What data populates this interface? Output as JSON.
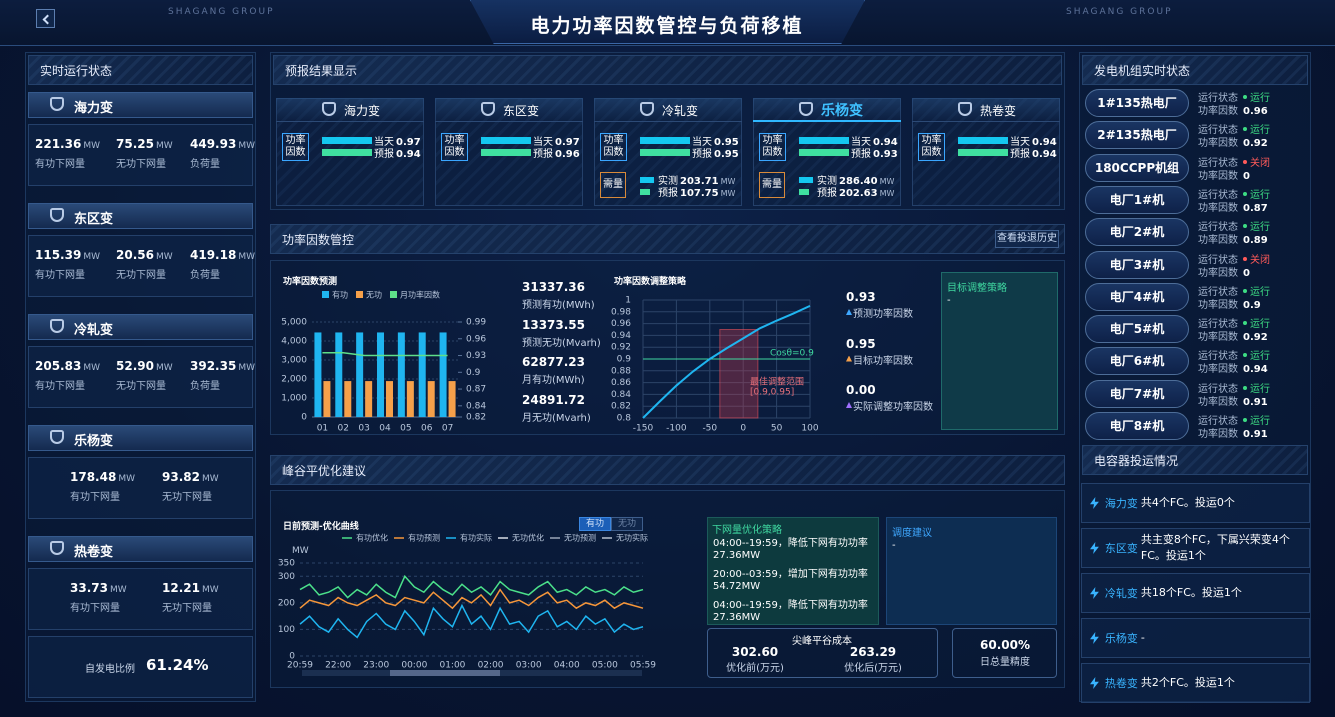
{
  "header": {
    "title": "电力功率因数管控与负荷移植",
    "brand_left": "SHAGANG GROUP",
    "brand_right": "SHAGANG GROUP"
  },
  "realtime": {
    "title": "实时运行状态",
    "units": [
      {
        "name": "海力变",
        "stats": [
          {
            "value": "221.36",
            "unit": "MW",
            "label": "有功下网量"
          },
          {
            "value": "75.25",
            "unit": "MW",
            "label": "无功下网量"
          },
          {
            "value": "449.93",
            "unit": "MW",
            "label": "负荷量"
          }
        ]
      },
      {
        "name": "东区变",
        "stats": [
          {
            "value": "115.39",
            "unit": "MW",
            "label": "有功下网量"
          },
          {
            "value": "20.56",
            "unit": "MW",
            "label": "无功下网量"
          },
          {
            "value": "419.18",
            "unit": "MW",
            "label": "负荷量"
          }
        ]
      },
      {
        "name": "冷轧变",
        "stats": [
          {
            "value": "205.83",
            "unit": "MW",
            "label": "有功下网量"
          },
          {
            "value": "52.90",
            "unit": "MW",
            "label": "无功下网量"
          },
          {
            "value": "392.35",
            "unit": "MW",
            "label": "负荷量"
          }
        ]
      },
      {
        "name": "乐杨变",
        "stats": [
          {
            "value": "178.48",
            "unit": "MW",
            "label": "有功下网量"
          },
          {
            "value": "93.82",
            "unit": "MW",
            "label": "无功下网量"
          }
        ]
      },
      {
        "name": "热卷变",
        "stats": [
          {
            "value": "33.73",
            "unit": "MW",
            "label": "有功下网量"
          },
          {
            "value": "12.21",
            "unit": "MW",
            "label": "无功下网量"
          }
        ]
      }
    ],
    "self_gen": {
      "label": "自发电比例",
      "value": "61.24%"
    }
  },
  "forecast": {
    "title": "预报结果显示",
    "selected": 3,
    "cards": [
      {
        "name": "海力变",
        "pf_label": "功率因数",
        "today_label": "当天",
        "today": "0.97",
        "forecast_label": "预报",
        "forecast": "0.94"
      },
      {
        "name": "东区变",
        "pf_label": "功率因数",
        "today_label": "当天",
        "today": "0.97",
        "forecast_label": "预报",
        "forecast": "0.96"
      },
      {
        "name": "冷轧变",
        "pf_label": "功率因数",
        "today_label": "当天",
        "today": "0.95",
        "forecast_label": "预报",
        "forecast": "0.95",
        "demand": {
          "label": "需量",
          "measured_label": "实测",
          "measured": "203.71",
          "measured_unit": "MW",
          "forecast_label": "预报",
          "forecast": "107.75",
          "forecast_unit": "MW"
        }
      },
      {
        "name": "乐杨变",
        "pf_label": "功率因数",
        "today_label": "当天",
        "today": "0.94",
        "forecast_label": "预报",
        "forecast": "0.93",
        "demand": {
          "label": "需量",
          "measured_label": "实测",
          "measured": "286.40",
          "measured_unit": "MW",
          "forecast_label": "预报",
          "forecast": "202.63",
          "forecast_unit": "MW"
        }
      },
      {
        "name": "热卷变",
        "pf_label": "功率因数",
        "today_label": "当天",
        "today": "0.94",
        "forecast_label": "预报",
        "forecast": "0.94"
      }
    ]
  },
  "pf_control": {
    "title": "功率因数管控",
    "history_button": "查看投退历史",
    "forecast_chart": {
      "type": "bar",
      "title": "功率因数预测",
      "categories": [
        "01",
        "02",
        "03",
        "04",
        "05",
        "06",
        "07"
      ],
      "series": [
        {
          "name": "有功",
          "color": "#1fb5f0",
          "values": [
            4450,
            4450,
            4450,
            4450,
            4450,
            4450,
            4450
          ]
        },
        {
          "name": "无功",
          "color": "#f5a04a",
          "values": [
            1890,
            1890,
            1890,
            1890,
            1890,
            1890,
            1890
          ]
        },
        {
          "name": "月功率因数",
          "color": "#5ee08a",
          "type": "line",
          "axis": "y2",
          "values": [
            0.935,
            0.935,
            0.93,
            0.93,
            0.93,
            0.93,
            0.93
          ]
        }
      ],
      "ylim": [
        0,
        5000
      ],
      "yticks": [
        0,
        {
          "value": 1000,
          "label": "1,000"
        },
        {
          "value": 2000,
          "label": "2,000"
        },
        {
          "value": 3000,
          "label": "3,000"
        },
        {
          "value": 4000,
          "label": "4,000"
        },
        {
          "value": 5000,
          "label": "5,000"
        }
      ],
      "y2lim": [
        0.82,
        0.99
      ],
      "y2ticks": [
        0.82,
        0.84,
        0.87,
        0.9,
        0.93,
        0.96,
        0.99
      ],
      "grid": true
    },
    "stats": [
      {
        "value": "31337.36",
        "label": "预测有功(MWh)"
      },
      {
        "value": "13373.55",
        "label": "预测无功(Mvarh)"
      },
      {
        "value": "62877.23",
        "label": "月有功(MWh)"
      },
      {
        "value": "24891.72",
        "label": "月无功(Mvarh)"
      }
    ],
    "strategy_chart": {
      "type": "line",
      "title": "功率因数调整策略",
      "color": "#1fb5f0",
      "x": [
        -150,
        -125,
        -100,
        -75,
        -50,
        -25,
        0,
        25,
        50,
        75,
        100
      ],
      "values": [
        0.8,
        0.828,
        0.855,
        0.879,
        0.9,
        0.918,
        0.935,
        0.952,
        0.965,
        0.977,
        0.99
      ],
      "xlim": [
        -150,
        100
      ],
      "xticks": [
        -150,
        -100,
        -50,
        0,
        50,
        100
      ],
      "ylim": [
        0.8,
        1
      ],
      "yticks": [
        0.8,
        0.82,
        0.84,
        0.86,
        0.88,
        0.9,
        0.92,
        0.94,
        0.96,
        0.98,
        1
      ],
      "grid": true,
      "reference": {
        "value": 0.9,
        "label": "Cosθ=0.9"
      },
      "highlight": {
        "x": [
          -35,
          22
        ],
        "y": [
          0.8,
          0.95
        ],
        "label": "最佳调整范围",
        "range_label": "[0.9,0.95]"
      }
    },
    "results": [
      {
        "value": "0.93",
        "label": "预测功率因数",
        "color": "#3fa8ff"
      },
      {
        "value": "0.95",
        "label": "目标功率因数",
        "color": "#f5a04a"
      },
      {
        "value": "0.00",
        "label": "实际调整功率因数",
        "color": "#a070ff"
      }
    ],
    "target": {
      "title": "目标调整策略",
      "text": "-"
    }
  },
  "peak_valley": {
    "title": "峰谷平优化建议",
    "curve_chart": {
      "type": "line",
      "title": "日前预测-优化曲线",
      "y_label": "MW",
      "categories": [
        "20:59",
        null,
        null,
        null,
        "22:00",
        null,
        null,
        null,
        "23:00",
        null,
        null,
        null,
        "00:00",
        null,
        null,
        null,
        "01:00",
        null,
        null,
        null,
        "02:00",
        null,
        null,
        null,
        "03:00",
        null,
        null,
        null,
        "04:00",
        null,
        null,
        null,
        "05:00",
        null,
        null,
        null,
        "05:59"
      ],
      "series": [
        {
          "name": "有功优化",
          "color": "#4be08a",
          "values": [
            250,
            270,
            230,
            240,
            260,
            220,
            250,
            230,
            270,
            240,
            220,
            300,
            260,
            240,
            280,
            250,
            230,
            270,
            240,
            260,
            230,
            280,
            250,
            240,
            230,
            260,
            280,
            240,
            250,
            230,
            260,
            240,
            250,
            230,
            260,
            240,
            250
          ]
        },
        {
          "name": "有功预测",
          "color": "#f5963a",
          "values": [
            180,
            210,
            200,
            190,
            220,
            200,
            190,
            210,
            230,
            200,
            190,
            220,
            210,
            200,
            240,
            210,
            180,
            220,
            200,
            230,
            190,
            250,
            200,
            210,
            190,
            220,
            240,
            200,
            210,
            180,
            200,
            190,
            210,
            180,
            200,
            190,
            180
          ]
        },
        {
          "name": "有功实际",
          "color": "#1fb5f0",
          "values": [
            120,
            150,
            110,
            90,
            140,
            100,
            70,
            130,
            160,
            120,
            100,
            170,
            130,
            80,
            180,
            140,
            110,
            190,
            120,
            150,
            100,
            180,
            120,
            130,
            90,
            150,
            170,
            110,
            130,
            100,
            150,
            120,
            140,
            90,
            120,
            100,
            110
          ]
        },
        {
          "name": "无功优化",
          "color": "#d8dde6"
        },
        {
          "name": "无功预测",
          "color": "#9aa6b8"
        },
        {
          "name": "无功实际",
          "color": "#b8c2d0"
        }
      ],
      "ylim": [
        0,
        350
      ],
      "yticks": [
        0,
        100,
        200,
        300,
        350
      ],
      "grid": true
    },
    "toggle": [
      "有功",
      "无功"
    ],
    "strategy": {
      "title": "下网量优化策略",
      "lines": [
        "04:00--19:59，降低下网有功功率",
        "27.36MW",
        "20:00--03:59，增加下网有功功率",
        "54.72MW",
        "04:00--19:59，降低下网有功功率",
        "27.36MW"
      ]
    },
    "advice": {
      "title": "调度建议",
      "text": "-"
    },
    "cost": {
      "title": "尖峰平谷成本",
      "items": [
        {
          "value": "302.60",
          "label": "优化前(万元)"
        },
        {
          "value": "263.29",
          "label": "优化后(万元)"
        }
      ]
    },
    "accuracy": {
      "value": "60.00%",
      "label": "日总量精度"
    }
  },
  "generators": {
    "title": "发电机组实时状态",
    "items": [
      {
        "name": "1#135热电厂",
        "status_label": "运行状态",
        "status": "运行",
        "color": "#3ddc84",
        "pf_label": "功率因数",
        "pf": "0.96"
      },
      {
        "name": "2#135热电厂",
        "status_label": "运行状态",
        "status": "运行",
        "color": "#3ddc84",
        "pf_label": "功率因数",
        "pf": "0.92"
      },
      {
        "name": "180CCPP机组",
        "status_label": "运行状态",
        "status": "关闭",
        "color": "#ff5a5a",
        "pf_label": "功率因数",
        "pf": "0"
      },
      {
        "name": "电厂1#机",
        "status_label": "运行状态",
        "status": "运行",
        "color": "#3ddc84",
        "pf_label": "功率因数",
        "pf": "0.87"
      },
      {
        "name": "电厂2#机",
        "status_label": "运行状态",
        "status": "运行",
        "color": "#3ddc84",
        "pf_label": "功率因数",
        "pf": "0.89"
      },
      {
        "name": "电厂3#机",
        "status_label": "运行状态",
        "status": "关闭",
        "color": "#ff5a5a",
        "pf_label": "功率因数",
        "pf": "0"
      },
      {
        "name": "电厂4#机",
        "status_label": "运行状态",
        "status": "运行",
        "color": "#3ddc84",
        "pf_label": "功率因数",
        "pf": "0.9"
      },
      {
        "name": "电厂5#机",
        "status_label": "运行状态",
        "status": "运行",
        "color": "#3ddc84",
        "pf_label": "功率因数",
        "pf": "0.92"
      },
      {
        "name": "电厂6#机",
        "status_label": "运行状态",
        "status": "运行",
        "color": "#3ddc84",
        "pf_label": "功率因数",
        "pf": "0.94"
      },
      {
        "name": "电厂7#机",
        "status_label": "运行状态",
        "status": "运行",
        "color": "#3ddc84",
        "pf_label": "功率因数",
        "pf": "0.91"
      },
      {
        "name": "电厂8#机",
        "status_label": "运行状态",
        "status": "运行",
        "color": "#3ddc84",
        "pf_label": "功率因数",
        "pf": "0.91"
      }
    ]
  },
  "capacitors": {
    "title": "电容器投运情况",
    "items": [
      {
        "name": "海力变",
        "text": "共4个FC。投运0个"
      },
      {
        "name": "东区变",
        "text": "共主变8个FC，下属兴荣变4个FC。投运1个"
      },
      {
        "name": "冷轧变",
        "text": "共18个FC。投运1个"
      },
      {
        "name": "乐杨变",
        "text": "-"
      },
      {
        "name": "热卷变",
        "text": "共2个FC。投运1个"
      }
    ]
  }
}
